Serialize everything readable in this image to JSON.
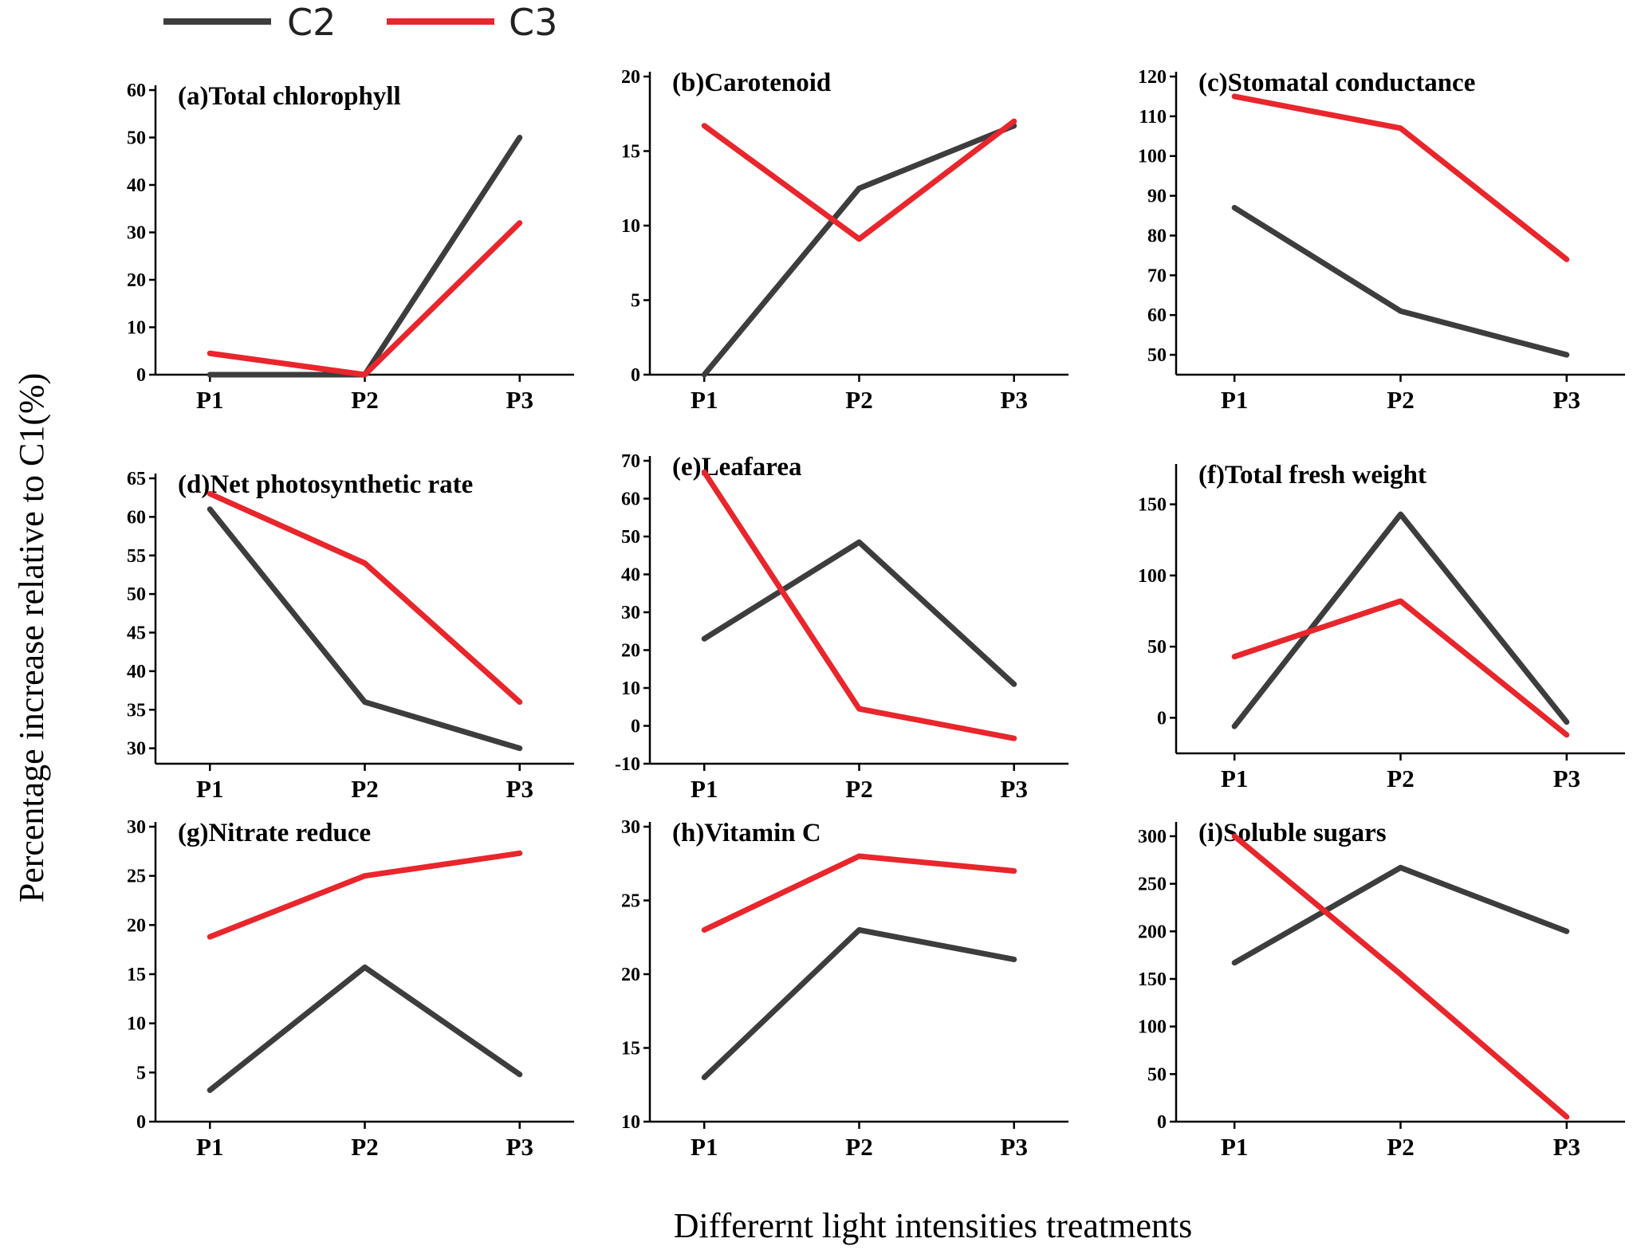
{
  "figure": {
    "y_axis_title": "Percentage increase relative to C1(%)",
    "x_axis_title": "Differernt light intensities treatments"
  },
  "legend": [
    {
      "name": "C2",
      "color": "#3d3d3d"
    },
    {
      "name": "C3",
      "color": "#e8262c"
    }
  ],
  "chart_data": [
    {
      "type": "line",
      "title": "(a)Total chlorophyll",
      "categories": [
        "P1",
        "P2",
        "P3"
      ],
      "ylim": [
        0,
        60
      ],
      "yticks": [
        0,
        10,
        20,
        30,
        40,
        50,
        60
      ],
      "series": [
        {
          "name": "C2",
          "values": [
            0,
            0,
            50
          ]
        },
        {
          "name": "C3",
          "values": [
            4.5,
            0,
            32
          ]
        }
      ]
    },
    {
      "type": "line",
      "title": "(b)Carotenoid",
      "categories": [
        "P1",
        "P2",
        "P3"
      ],
      "ylim": [
        0,
        20
      ],
      "yticks": [
        0,
        5,
        10,
        15,
        20
      ],
      "series": [
        {
          "name": "C2",
          "values": [
            0,
            12.5,
            16.7
          ]
        },
        {
          "name": "C3",
          "values": [
            16.7,
            9.1,
            17
          ]
        }
      ]
    },
    {
      "type": "line",
      "title": "(c)Stomatal conductance",
      "categories": [
        "P1",
        "P2",
        "P3"
      ],
      "ylim": [
        45,
        120
      ],
      "yticks": [
        50,
        60,
        70,
        80,
        90,
        100,
        110,
        120
      ],
      "series": [
        {
          "name": "C2",
          "values": [
            87,
            61,
            50
          ]
        },
        {
          "name": "C3",
          "values": [
            115,
            107,
            74
          ]
        }
      ]
    },
    {
      "type": "line",
      "title": "(d)Net photosynthetic rate",
      "categories": [
        "P1",
        "P2",
        "P3"
      ],
      "ylim": [
        28,
        65
      ],
      "yticks": [
        30,
        35,
        40,
        45,
        50,
        55,
        60,
        65
      ],
      "series": [
        {
          "name": "C2",
          "values": [
            61,
            36,
            30
          ]
        },
        {
          "name": "C3",
          "values": [
            63,
            54,
            36
          ]
        }
      ]
    },
    {
      "type": "line",
      "title": "(e)Leafarea",
      "categories": [
        "P1",
        "P2",
        "P3"
      ],
      "ylim": [
        -10,
        70
      ],
      "yticks": [
        -10,
        0,
        10,
        20,
        30,
        40,
        50,
        60,
        70
      ],
      "series": [
        {
          "name": "C2",
          "values": [
            23,
            48.5,
            11
          ]
        },
        {
          "name": "C3",
          "values": [
            67,
            4.5,
            -3.3
          ]
        }
      ]
    },
    {
      "type": "line",
      "title": "(f)Total fresh weight",
      "categories": [
        "P1",
        "P2",
        "P3"
      ],
      "ylim": [
        -25,
        175
      ],
      "yticks": [
        0,
        50,
        100,
        150
      ],
      "series": [
        {
          "name": "C2",
          "values": [
            -6,
            143,
            -3
          ]
        },
        {
          "name": "C3",
          "values": [
            43,
            82,
            -12
          ]
        }
      ]
    },
    {
      "type": "line",
      "title": "(g)Nitrate reduce",
      "categories": [
        "P1",
        "P2",
        "P3"
      ],
      "ylim": [
        0,
        30
      ],
      "yticks": [
        0,
        5,
        10,
        15,
        20,
        25,
        30
      ],
      "series": [
        {
          "name": "C2",
          "values": [
            3.2,
            15.7,
            4.8
          ]
        },
        {
          "name": "C3",
          "values": [
            18.8,
            25,
            27.3
          ]
        }
      ]
    },
    {
      "type": "line",
      "title": "(h)Vitamin C",
      "categories": [
        "P1",
        "P2",
        "P3"
      ],
      "ylim": [
        10,
        30
      ],
      "yticks": [
        10,
        15,
        20,
        25,
        30
      ],
      "series": [
        {
          "name": "C2",
          "values": [
            13,
            23,
            21
          ]
        },
        {
          "name": "C3",
          "values": [
            23,
            28,
            27
          ]
        }
      ]
    },
    {
      "type": "line",
      "title": "(i)Soluble sugars",
      "categories": [
        "P1",
        "P2",
        "P3"
      ],
      "ylim": [
        0,
        310
      ],
      "yticks": [
        0,
        50,
        100,
        150,
        200,
        250,
        300
      ],
      "series": [
        {
          "name": "C2",
          "values": [
            167,
            267,
            200
          ]
        },
        {
          "name": "C3",
          "values": [
            300,
            155,
            5
          ]
        }
      ]
    }
  ]
}
